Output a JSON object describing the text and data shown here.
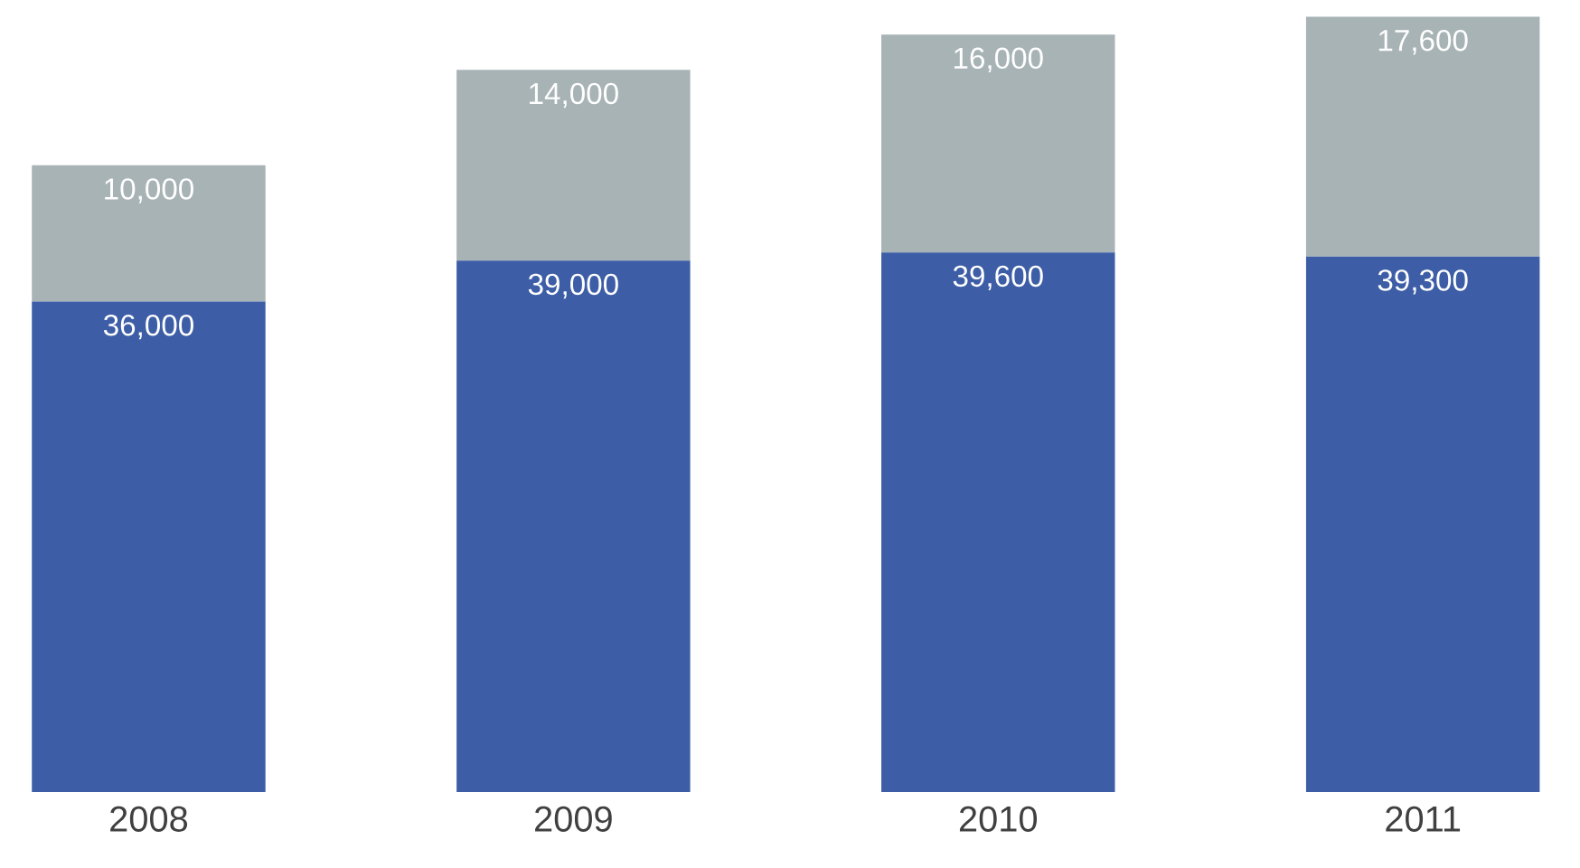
{
  "chart_data": {
    "type": "bar",
    "stacked": true,
    "categories": [
      "2008",
      "2009",
      "2010",
      "2011"
    ],
    "series": [
      {
        "color": "#3d5ea6",
        "values": [
          36000,
          39000,
          39600,
          39300
        ],
        "value_labels": [
          "36,000",
          "39,000",
          "39,600",
          "39,300"
        ]
      },
      {
        "color": "#a8b3b6",
        "values": [
          10000,
          14000,
          16000,
          17600
        ],
        "value_labels": [
          "10,000",
          "14,000",
          "16,000",
          "17,600"
        ]
      }
    ]
  }
}
